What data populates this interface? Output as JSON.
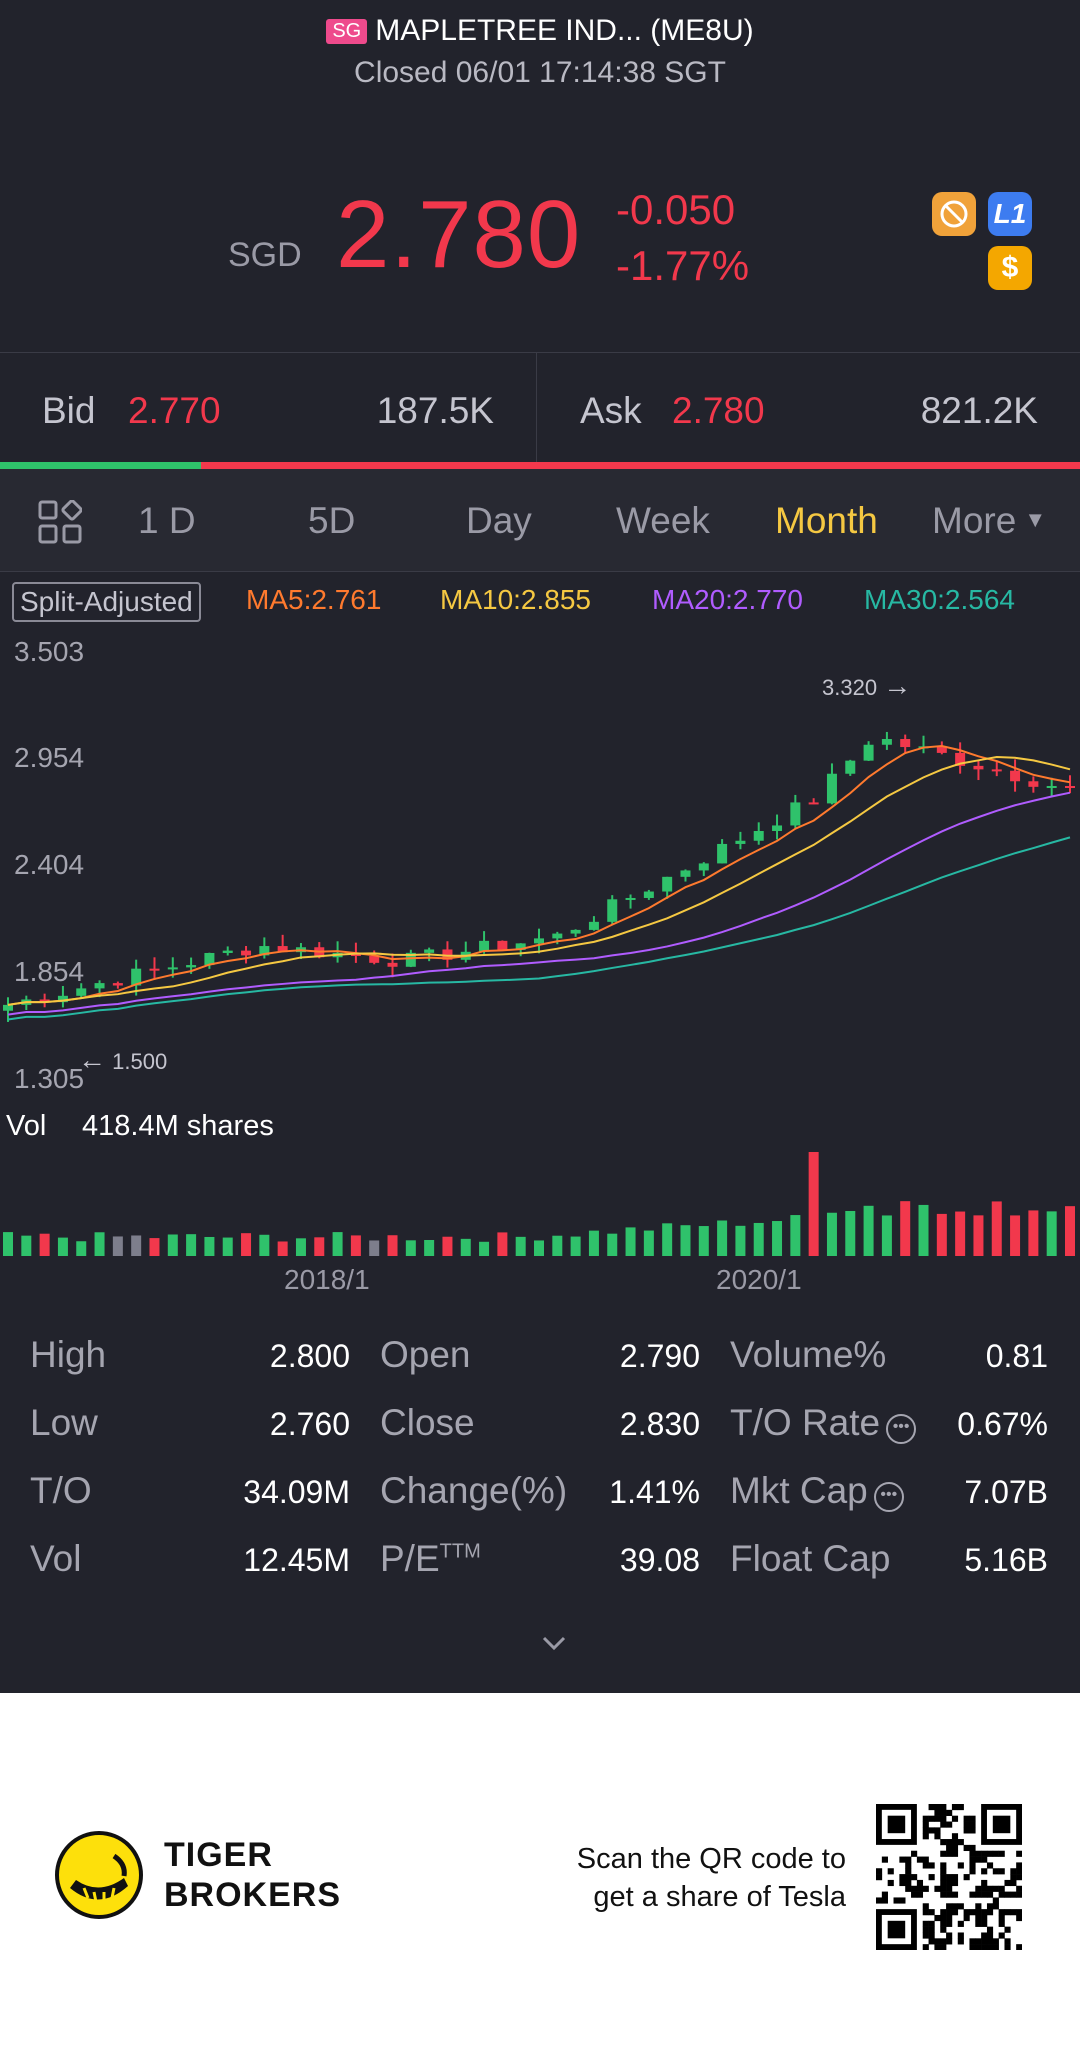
{
  "header": {
    "market_tag": "SG",
    "name": "MAPLETREE IND... (ME8U)",
    "status": "Closed 06/01 17:14:38 SGT"
  },
  "quote": {
    "currency": "SGD",
    "price": "2.780",
    "change": "-0.050",
    "change_pct": "-1.77%",
    "badge_l1": "L1",
    "badge_dollar": "$"
  },
  "orderbook": {
    "bid_label": "Bid",
    "bid_price": "2.770",
    "bid_size": "187.5K",
    "ask_label": "Ask",
    "ask_price": "2.780",
    "ask_size": "821.2K",
    "bid_ratio": 0.186
  },
  "tabs": [
    "1 D",
    "5D",
    "Day",
    "Week",
    "Month",
    "More"
  ],
  "active_tab": "Month",
  "chart_header": {
    "adjust": "Split-Adjusted",
    "ma5": "MA5:2.761",
    "ma10": "MA10:2.855",
    "ma20": "MA20:2.770",
    "ma30": "MA30:2.564"
  },
  "chart_data": {
    "type": "candlestick",
    "y_ticks": [
      "3.503",
      "2.954",
      "2.404",
      "1.854",
      "1.305"
    ],
    "ylim": [
      1.305,
      3.503
    ],
    "high_marker": "3.320",
    "low_marker": "1.500",
    "x_ticks": [
      "2018/1",
      "2020/1"
    ],
    "volume_label": "Vol",
    "volume_value": "418.4M shares",
    "colors": {
      "up": "#2fc26b",
      "down": "#f2384c",
      "ma5": "#ff7a2e",
      "ma10": "#f5c842",
      "ma20": "#b05cff",
      "ma30": "#27b8a3"
    }
  },
  "stats": {
    "high_label": "High",
    "high": "2.800",
    "low_label": "Low",
    "low": "2.760",
    "to_label": "T/O",
    "to": "34.09M",
    "vol_label": "Vol",
    "vol": "12.45M",
    "open_label": "Open",
    "open": "2.790",
    "close_label": "Close",
    "close": "2.830",
    "chg_label": "Change(%)",
    "chg": "1.41%",
    "pe_label": "P/E",
    "pe_sup": "TTM",
    "pe": "39.08",
    "volpct_label": "Volume%",
    "volpct": "0.81",
    "torate_label": "T/O Rate",
    "torate": "0.67%",
    "mktcap_label": "Mkt Cap",
    "mktcap": "7.07B",
    "floatcap_label": "Float Cap",
    "floatcap": "5.16B"
  },
  "footer": {
    "brand_line1": "TIGER",
    "brand_line2": "BROKERS",
    "promo_line1": "Scan the QR code to",
    "promo_line2": "get a share of Tesla"
  }
}
